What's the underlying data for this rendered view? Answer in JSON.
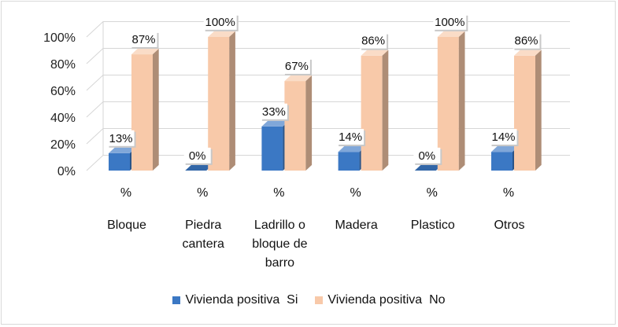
{
  "chart_data": {
    "type": "bar",
    "title": "",
    "xlabel": "",
    "ylabel": "",
    "ylim": [
      0,
      100
    ],
    "y_ticks": [
      "0%",
      "20%",
      "40%",
      "60%",
      "80%",
      "100%"
    ],
    "categories": [
      {
        "unit": "%",
        "lines": [
          "Bloque"
        ]
      },
      {
        "unit": "%",
        "lines": [
          "Piedra",
          "cantera"
        ]
      },
      {
        "unit": "%",
        "lines": [
          "Ladrillo o",
          "bloque de",
          "barro"
        ]
      },
      {
        "unit": "%",
        "lines": [
          "Madera"
        ]
      },
      {
        "unit": "%",
        "lines": [
          "Plastico"
        ]
      },
      {
        "unit": "%",
        "lines": [
          "Otros"
        ]
      }
    ],
    "series": [
      {
        "name": "Vivienda positiva  Si",
        "color": "#3b78c4",
        "values": [
          13,
          0,
          33,
          14,
          0,
          14
        ],
        "labels": [
          "13%",
          "0%",
          "33%",
          "14%",
          "0%",
          "14%"
        ]
      },
      {
        "name": "Vivienda positiva  No",
        "color": "#f8c9a9",
        "values": [
          87,
          100,
          67,
          86,
          100,
          86
        ],
        "labels": [
          "87%",
          "100%",
          "67%",
          "86%",
          "100%",
          "86%"
        ]
      }
    ],
    "grid": true,
    "legend_position": "bottom",
    "style": "3d-column"
  }
}
